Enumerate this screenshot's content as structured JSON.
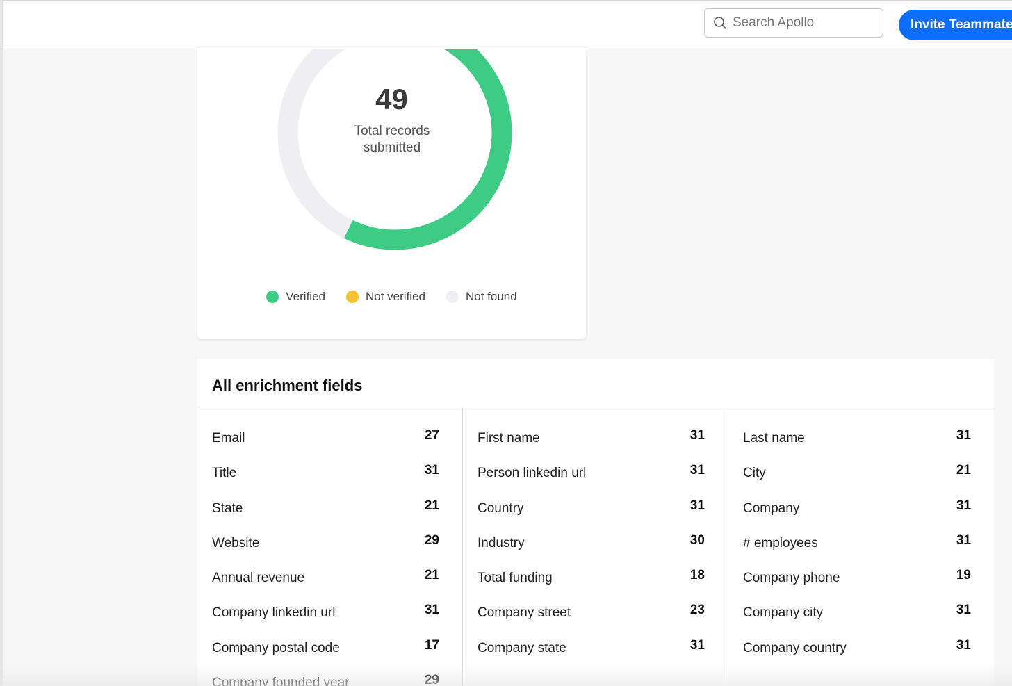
{
  "header": {
    "search_placeholder": "Search Apollo",
    "invite_label": "Invite Teammates",
    "search_icon": "search-icon",
    "accent": "#0d6efd"
  },
  "summary": {
    "total_value": "49",
    "total_label": "Total records submitted",
    "legend": [
      {
        "label": "Verified",
        "color": "#3ecb84"
      },
      {
        "label": "Not verified",
        "color": "#f5c234"
      },
      {
        "label": "Not found",
        "color": "#efeff1"
      }
    ]
  },
  "chart_data": {
    "type": "pie",
    "donut": true,
    "categories": [
      "Verified",
      "Not verified",
      "Not found"
    ],
    "values": [
      28,
      0,
      21
    ],
    "colors": [
      "#3ecb84",
      "#f5c234",
      "#efeff1"
    ],
    "center_value": 49,
    "center_label": "Total records submitted",
    "legend_position": "bottom"
  },
  "fields": {
    "title": "All enrichment fields",
    "columns": [
      [
        {
          "label": "Email",
          "count": "27"
        },
        {
          "label": "Title",
          "count": "31"
        },
        {
          "label": "State",
          "count": "21"
        },
        {
          "label": "Website",
          "count": "29"
        },
        {
          "label": "Annual revenue",
          "count": "21"
        },
        {
          "label": "Company linkedin url",
          "count": "31"
        },
        {
          "label": "Company postal code",
          "count": "17"
        },
        {
          "label": "Company founded year",
          "count": "29"
        }
      ],
      [
        {
          "label": "First name",
          "count": "31"
        },
        {
          "label": "Person linkedin url",
          "count": "31"
        },
        {
          "label": "Country",
          "count": "31"
        },
        {
          "label": "Industry",
          "count": "30"
        },
        {
          "label": "Total funding",
          "count": "18"
        },
        {
          "label": "Company street",
          "count": "23"
        },
        {
          "label": "Company state",
          "count": "31"
        }
      ],
      [
        {
          "label": "Last name",
          "count": "31"
        },
        {
          "label": "City",
          "count": "21"
        },
        {
          "label": "Company",
          "count": "31"
        },
        {
          "label": "# employees",
          "count": "31"
        },
        {
          "label": "Company phone",
          "count": "19"
        },
        {
          "label": "Company city",
          "count": "31"
        },
        {
          "label": "Company country",
          "count": "31"
        }
      ]
    ]
  }
}
